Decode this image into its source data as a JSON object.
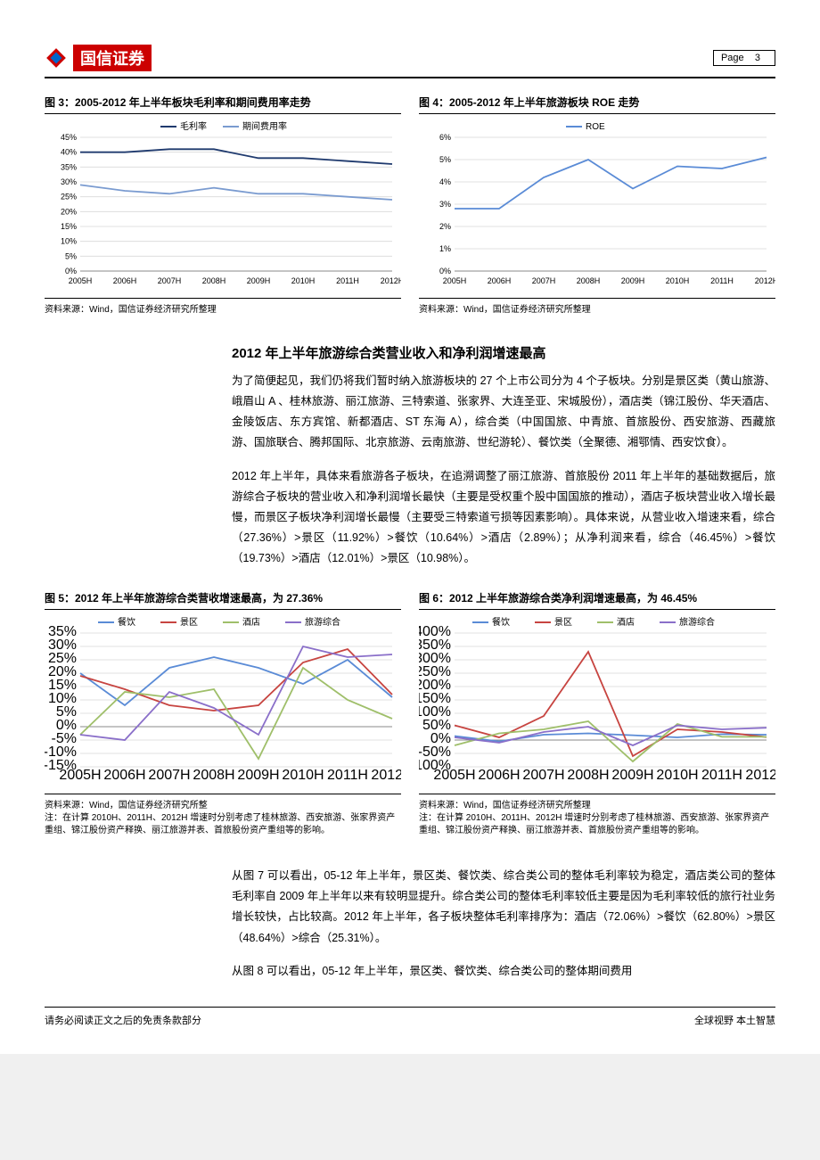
{
  "header": {
    "logo_text": "国信证券",
    "page_label": "Page",
    "page_num": "3"
  },
  "chart3": {
    "title": "图 3：2005-2012 年上半年板块毛利率和期间费用率走势",
    "series1_name": "毛利率",
    "series2_name": "期间费用率",
    "categories": [
      "2005H",
      "2006H",
      "2007H",
      "2008H",
      "2009H",
      "2010H",
      "2011H",
      "2012H"
    ],
    "series1": [
      40,
      40,
      41,
      41,
      38,
      38,
      37,
      36
    ],
    "series2": [
      29,
      27,
      26,
      28,
      26,
      26,
      25,
      24
    ],
    "ymax": 45,
    "ytick_step": 5,
    "color1": "#1f3a6e",
    "color2": "#7a9bd0",
    "grid_color": "#d9d9d9",
    "bg": "#ffffff",
    "axis_fontsize": 9,
    "source": "资料来源：Wind，国信证券经济研究所整理"
  },
  "chart4": {
    "title": "图 4：2005-2012 年上半年旅游板块 ROE 走势",
    "series1_name": "ROE",
    "categories": [
      "2005H",
      "2006H",
      "2007H",
      "2008H",
      "2009H",
      "2010H",
      "2011H",
      "2012H"
    ],
    "series1": [
      2.8,
      2.8,
      4.2,
      5.0,
      3.7,
      4.7,
      4.6,
      5.1
    ],
    "ymax": 6,
    "ytick_step": 1,
    "color1": "#5a8bd6",
    "grid_color": "#d9d9d9",
    "bg": "#ffffff",
    "axis_fontsize": 9,
    "source": "资料来源：Wind，国信证券经济研究所整理"
  },
  "body1": {
    "title": "2012 年上半年旅游综合类营业收入和净利润增速最高",
    "p1": "为了简便起见，我们仍将我们暂时纳入旅游板块的 27 个上市公司分为 4 个子板块。分别是景区类（黄山旅游、峨眉山 A 、桂林旅游、丽江旅游、三特索道、张家界、大连圣亚、宋城股份），酒店类（锦江股份、华天酒店、金陵饭店、东方宾馆、新都酒店、ST 东海 A），综合类（中国国旅、中青旅、首旅股份、西安旅游、西藏旅游、国旅联合、腾邦国际、北京旅游、云南旅游、世纪游轮）、餐饮类（全聚德、湘鄂情、西安饮食）。",
    "p2": "2012 年上半年，具体来看旅游各子板块，在追溯调整了丽江旅游、首旅股份 2011 年上半年的基础数据后，旅游综合子板块的营业收入和净利润增长最快（主要是受权重个股中国国旅的推动），酒店子板块营业收入增长最慢，而景区子板块净利润增长最慢（主要受三特索道亏损等因素影响）。具体来说，从营业收入增速来看，综合（27.36%）>景区（11.92%）>餐饮（10.64%）>酒店（2.89%）；从净利润来看，综合（46.45%）>餐饮（19.73%）>酒店（12.01%）>景区（10.98%）。"
  },
  "chart5": {
    "title": "图 5：2012 年上半年旅游综合类营收增速最高，为 27.36%",
    "legend": [
      "餐饮",
      "景区",
      "酒店",
      "旅游综合"
    ],
    "categories": [
      "2005H",
      "2006H",
      "2007H",
      "2008H",
      "2009H",
      "2010H",
      "2011H",
      "2012H"
    ],
    "series": [
      [
        20,
        8,
        22,
        26,
        22,
        16,
        25,
        11
      ],
      [
        19,
        14,
        8,
        6,
        8,
        24,
        29,
        12
      ],
      [
        -3,
        13,
        11,
        14,
        -12,
        22,
        10,
        3
      ],
      [
        -3,
        -5,
        13,
        7,
        -3,
        30,
        26,
        27
      ]
    ],
    "ymin": -15,
    "ymax": 35,
    "ytick_step": 5,
    "colors": [
      "#5a8bd6",
      "#c74440",
      "#9fbf6a",
      "#8a6fc9"
    ],
    "grid_color": "#d9d9d9",
    "source": "资料来源：Wind，国信证券经济研究所整",
    "note": "注：在计算 2010H、2011H、2012H 增速时分别考虑了桂林旅游、西安旅游、张家界资产重组、锦江股份资产释换、丽江旅游并表、首旅股份资产重组等的影响。"
  },
  "chart6": {
    "title": "图 6：2012 上半年旅游综合类净利润增速最高，为 46.45%",
    "legend": [
      "餐饮",
      "景区",
      "酒店",
      "旅游综合"
    ],
    "categories": [
      "2005H",
      "2006H",
      "2007H",
      "2008H",
      "2009H",
      "2010H",
      "2011H",
      "2012H"
    ],
    "series": [
      [
        15,
        -5,
        20,
        25,
        18,
        10,
        22,
        20
      ],
      [
        55,
        10,
        90,
        330,
        -60,
        40,
        30,
        11
      ],
      [
        -20,
        25,
        40,
        70,
        -80,
        60,
        12,
        12
      ],
      [
        10,
        -10,
        30,
        50,
        -20,
        55,
        40,
        46
      ]
    ],
    "ymin": -100,
    "ymax": 400,
    "ytick_step": 50,
    "colors": [
      "#5a8bd6",
      "#c74440",
      "#9fbf6a",
      "#8a6fc9"
    ],
    "grid_color": "#d9d9d9",
    "source": "资料来源：Wind，国信证券经济研究所整理",
    "note": "注：在计算 2010H、2011H、2012H 增速时分别考虑了桂林旅游、西安旅游、张家界资产重组、锦江股份资产释换、丽江旅游并表、首旅股份资产重组等的影响。"
  },
  "body2": {
    "p1": "从图 7 可以看出，05-12 年上半年，景区类、餐饮类、综合类公司的整体毛利率较为稳定，酒店类公司的整体毛利率自 2009 年上半年以来有较明显提升。综合类公司的整体毛利率较低主要是因为毛利率较低的旅行社业务增长较快，占比较高。2012 年上半年，各子板块整体毛利率排序为：酒店（72.06%）>餐饮（62.80%）>景区（48.64%）>综合（25.31%）。",
    "p2": "从图 8 可以看出，05-12 年上半年，景区类、餐饮类、综合类公司的整体期间费用"
  },
  "footer": {
    "left": "请务必阅读正文之后的免责条款部分",
    "right": "全球视野   本土智慧"
  }
}
